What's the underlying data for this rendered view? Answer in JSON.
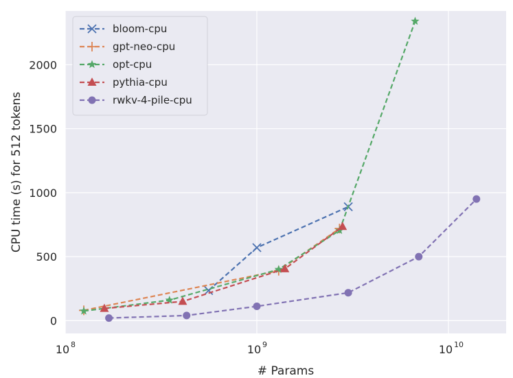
{
  "chart_data": {
    "type": "line",
    "xlabel": "# Params",
    "ylabel": "CPU time (s) for 512 tokens",
    "xscale": "log",
    "xlim": [
      100000000,
      20000000000
    ],
    "ylim": [
      -100,
      2420
    ],
    "x_ticks": [
      {
        "value": 100000000,
        "base": "10",
        "exp": "8"
      },
      {
        "value": 1000000000,
        "base": "10",
        "exp": "9"
      },
      {
        "value": 10000000000,
        "base": "10",
        "exp": "10"
      }
    ],
    "y_ticks": [
      {
        "value": 0,
        "label": "0"
      },
      {
        "value": 500,
        "label": "500"
      },
      {
        "value": 1000,
        "label": "1000"
      },
      {
        "value": 1500,
        "label": "1500"
      },
      {
        "value": 2000,
        "label": "2000"
      }
    ],
    "grid": true,
    "legend_position": "top-left",
    "series": [
      {
        "name": "bloom-cpu",
        "color": "#4c72b0",
        "marker": "x",
        "points": [
          [
            560000000,
            235
          ],
          [
            1000000000,
            570
          ],
          [
            3000000000,
            890
          ]
        ]
      },
      {
        "name": "gpt-neo-cpu",
        "color": "#dd8452",
        "marker": "plus",
        "points": [
          [
            125000000,
            80
          ],
          [
            1300000000,
            390
          ],
          [
            2700000000,
            720
          ]
        ]
      },
      {
        "name": "opt-cpu",
        "color": "#55a868",
        "marker": "star",
        "points": [
          [
            125000000,
            75
          ],
          [
            350000000,
            160
          ],
          [
            1300000000,
            400
          ],
          [
            2700000000,
            705
          ],
          [
            6700000000,
            2340
          ]
        ]
      },
      {
        "name": "pythia-cpu",
        "color": "#c44e52",
        "marker": "triangle",
        "points": [
          [
            160000000,
            95
          ],
          [
            410000000,
            150
          ],
          [
            1400000000,
            405
          ],
          [
            2800000000,
            735
          ]
        ]
      },
      {
        "name": "rwkv-4-pile-cpu",
        "color": "#8172b3",
        "marker": "circle",
        "points": [
          [
            169000000,
            20
          ],
          [
            430000000,
            40
          ],
          [
            1000000000,
            112
          ],
          [
            3000000000,
            218
          ],
          [
            7000000000,
            500
          ],
          [
            14000000000,
            950
          ]
        ]
      }
    ]
  }
}
